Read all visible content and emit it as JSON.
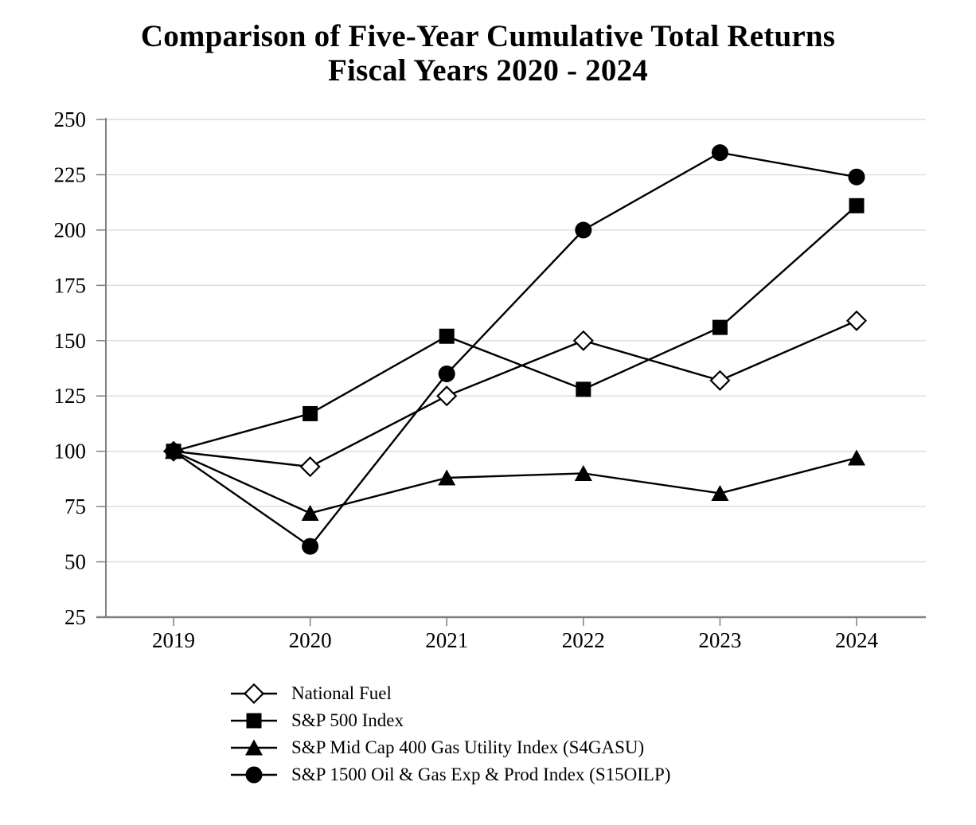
{
  "title": {
    "line1": "Comparison of Five-Year Cumulative Total Returns",
    "line2": "Fiscal Years 2020 - 2024"
  },
  "chart_data": {
    "type": "line",
    "title": "Comparison of Five-Year Cumulative Total Returns",
    "subtitle": "Fiscal Years 2020 - 2024",
    "x": [
      "2019",
      "2020",
      "2021",
      "2022",
      "2023",
      "2024"
    ],
    "series": [
      {
        "id": "national-fuel",
        "name": "National Fuel",
        "marker": "diamond",
        "fill": "open",
        "values": [
          100,
          93,
          125,
          150,
          132,
          159
        ]
      },
      {
        "id": "sp500",
        "name": "S&P 500 Index",
        "marker": "square",
        "fill": "solid",
        "values": [
          100,
          117,
          152,
          128,
          156,
          211
        ]
      },
      {
        "id": "s4gasu",
        "name": "S&P Mid Cap 400 Gas Utility Index (S4GASU)",
        "marker": "triangle",
        "fill": "solid",
        "values": [
          100,
          72,
          88,
          90,
          81,
          97
        ]
      },
      {
        "id": "s15oilp",
        "name": "S&P 1500 Oil & Gas Exp & Prod Index (S15OILP)",
        "marker": "circle",
        "fill": "solid",
        "values": [
          100,
          57,
          135,
          200,
          235,
          224
        ]
      }
    ],
    "yticks": [
      250,
      225,
      200,
      175,
      150,
      125,
      100,
      75,
      50,
      25
    ],
    "ylim": [
      25,
      250
    ],
    "ytick_step": 25,
    "grid": true,
    "legend_position": "bottom-left",
    "colors": {
      "line": "#000000",
      "marker": "#000000",
      "marker_open_fill": "#ffffff",
      "grid": "#dcdcdc",
      "axis": "#808080",
      "text": "#000000",
      "background": "#ffffff"
    }
  }
}
